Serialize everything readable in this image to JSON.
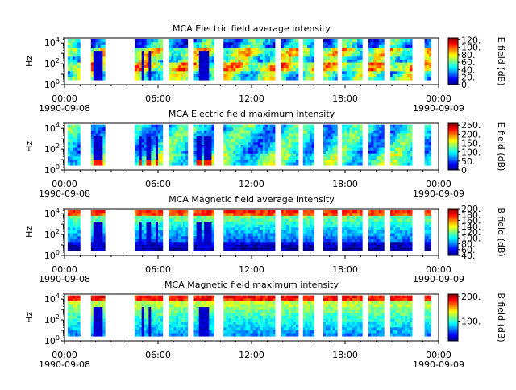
{
  "chart_data": [
    {
      "type": "heatmap",
      "title": "MCA  Electric field average intensity",
      "ylabel": "Hz",
      "y_scale": "log",
      "ylim": [
        1,
        30000
      ],
      "y_ticks": [
        {
          "v": 1,
          "b": "10",
          "e": "0"
        },
        {
          "v": 100,
          "b": "10",
          "e": "2"
        },
        {
          "v": 10000,
          "b": "10",
          "e": "4"
        }
      ],
      "x_ticks": [
        "00:00",
        "06:00",
        "12:00",
        "18:00",
        "00:00"
      ],
      "x_dates": [
        "1990-09-08",
        "1990-09-09"
      ],
      "colorbar": {
        "label": "E field (dB)",
        "range": [
          0,
          125
        ],
        "ticks": [
          "120.",
          "100.",
          "80.",
          "60.",
          "40.",
          "20.",
          "0."
        ],
        "tick_values": [
          120,
          100,
          80,
          60,
          40,
          20,
          0
        ]
      },
      "colormap": "jet",
      "style": "E_avg"
    },
    {
      "type": "heatmap",
      "title": "MCA  Electric field maximum intensity",
      "ylabel": "Hz",
      "y_scale": "log",
      "ylim": [
        1,
        30000
      ],
      "y_ticks": [
        {
          "v": 1,
          "b": "10",
          "e": "0"
        },
        {
          "v": 100,
          "b": "10",
          "e": "2"
        },
        {
          "v": 10000,
          "b": "10",
          "e": "4"
        }
      ],
      "x_ticks": [
        "00:00",
        "06:00",
        "12:00",
        "18:00",
        "00:00"
      ],
      "x_dates": [
        "1990-09-08",
        "1990-09-09"
      ],
      "colorbar": {
        "label": "E field (dB)",
        "range": [
          0,
          260
        ],
        "ticks": [
          "250.",
          "200.",
          "150.",
          "100.",
          "50.",
          "0."
        ],
        "tick_values": [
          250,
          200,
          150,
          100,
          50,
          0
        ]
      },
      "colormap": "jet",
      "style": "E_max"
    },
    {
      "type": "heatmap",
      "title": "MCA  Magnetic field average intensity",
      "ylabel": "Hz",
      "y_scale": "log",
      "ylim": [
        1,
        30000
      ],
      "y_ticks": [
        {
          "v": 1,
          "b": "10",
          "e": "0"
        },
        {
          "v": 100,
          "b": "10",
          "e": "2"
        },
        {
          "v": 10000,
          "b": "10",
          "e": "4"
        }
      ],
      "x_ticks": [
        "00:00",
        "06:00",
        "12:00",
        "18:00",
        "00:00"
      ],
      "x_dates": [
        "1990-09-08",
        "1990-09-09"
      ],
      "colorbar": {
        "label": "B field (dB)",
        "range": [
          40,
          200
        ],
        "ticks": [
          "200.",
          "180.",
          "160.",
          "140.",
          "120.",
          "100.",
          "80.",
          "60.",
          "40."
        ],
        "tick_values": [
          200,
          180,
          160,
          140,
          120,
          100,
          80,
          60,
          40
        ]
      },
      "colormap": "jet",
      "style": "B_avg"
    },
    {
      "type": "heatmap",
      "title": "MCA  Magnetic field maximum intensity",
      "ylabel": "Hz",
      "y_scale": "log",
      "ylim": [
        1,
        30000
      ],
      "y_ticks": [
        {
          "v": 1,
          "b": "10",
          "e": "0"
        },
        {
          "v": 100,
          "b": "10",
          "e": "2"
        },
        {
          "v": 10000,
          "b": "10",
          "e": "4"
        }
      ],
      "x_ticks": [
        "00:00",
        "06:00",
        "12:00",
        "18:00",
        "00:00"
      ],
      "x_dates": [
        "1990-09-08",
        "1990-09-09"
      ],
      "colorbar": {
        "label": "B field (dB)",
        "range": [
          20,
          210
        ],
        "ticks": [
          "200.",
          "100."
        ],
        "tick_values": [
          200,
          100
        ]
      },
      "colormap": "jet",
      "style": "B_max"
    }
  ],
  "data_segments_hours": [
    [
      0.2,
      1.0
    ],
    [
      1.7,
      2.6
    ],
    [
      4.5,
      6.3
    ],
    [
      6.7,
      7.9
    ],
    [
      8.3,
      9.6
    ],
    [
      10.2,
      13.5
    ],
    [
      13.9,
      15.0
    ],
    [
      15.3,
      16.0
    ],
    [
      16.6,
      17.5
    ],
    [
      17.8,
      19.1
    ],
    [
      19.5,
      20.5
    ],
    [
      20.9,
      22.3
    ],
    [
      23.1,
      23.5
    ]
  ],
  "x_range_hours": [
    0,
    24
  ]
}
